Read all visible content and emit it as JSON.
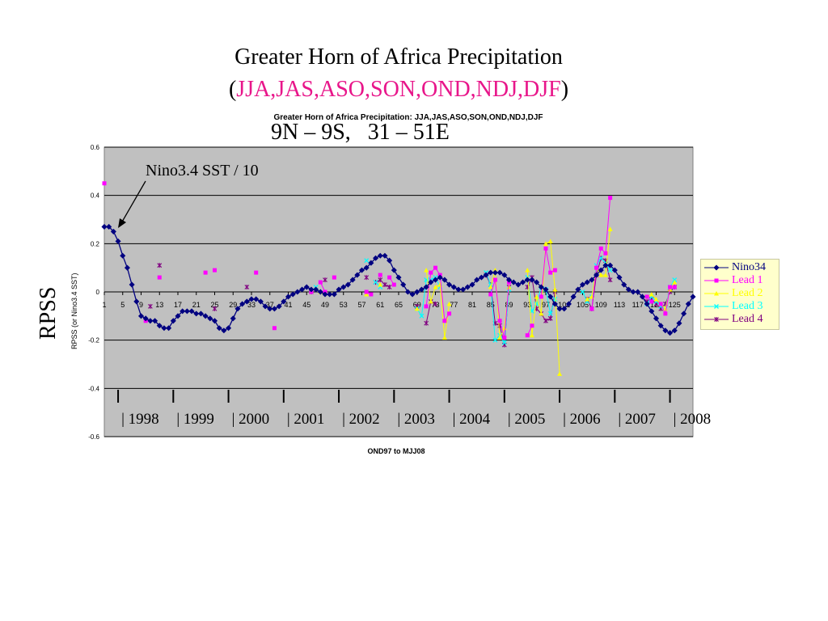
{
  "slide": {
    "title_line1": "Greater Horn of Africa Precipitation",
    "title_line2_open": "(",
    "title_line2_seasons": "JJA,JAS,ASO,SON,OND,NDJ,DJF",
    "title_line2_close": ")",
    "region": "9N – 9S,   31 – 51E",
    "rpss_label": "RPSS",
    "annotation": "Nino3.4 SST / 10"
  },
  "colors": {
    "plot_background": "#c0c0c0",
    "season_accent": "#e8168a",
    "Nino34": "#000080",
    "Lead 1": "#ff00ff",
    "Lead 2": "#ffff00",
    "Lead 3": "#00ffff",
    "Lead 4": "#800080",
    "legend_background": "#ffffcc"
  },
  "chart_data": {
    "type": "line",
    "title": "Greater Horn of Africa Precipitation: JJA,JAS,ASO,SON,OND,NDJ,DJF",
    "xlabel": "OND97 to MJJ08",
    "ylabel": "RPSS (or Nino3.4 SST)",
    "ylim": [
      -0.6,
      0.6
    ],
    "yticks": [
      "0.6",
      "0.4",
      "0.2",
      "0",
      "-0.2",
      "-0.4",
      "-0.6"
    ],
    "xticks": [
      "1",
      "5",
      "9",
      "13",
      "17",
      "21",
      "25",
      "29",
      "33",
      "37",
      "41",
      "45",
      "49",
      "53",
      "57",
      "61",
      "65",
      "69",
      "73",
      "77",
      "81",
      "85",
      "89",
      "93",
      "97",
      "101",
      "105",
      "109",
      "113",
      "117",
      "121",
      "125"
    ],
    "xlim": [
      1,
      129
    ],
    "year_labels": [
      "1998",
      "1999",
      "2000",
      "2001",
      "2002",
      "2003",
      "2004",
      "2005",
      "2006",
      "2007",
      "2008"
    ],
    "grid": true,
    "legend_position": "right",
    "series": [
      {
        "name": "Nino34",
        "x": [
          1,
          2,
          3,
          4,
          5,
          6,
          7,
          8,
          9,
          10,
          11,
          12,
          13,
          14,
          15,
          16,
          17,
          18,
          19,
          20,
          21,
          22,
          23,
          24,
          25,
          26,
          27,
          28,
          29,
          30,
          31,
          32,
          33,
          34,
          35,
          36,
          37,
          38,
          39,
          40,
          41,
          42,
          43,
          44,
          45,
          46,
          47,
          48,
          49,
          50,
          51,
          52,
          53,
          54,
          55,
          56,
          57,
          58,
          59,
          60,
          61,
          62,
          63,
          64,
          65,
          66,
          67,
          68,
          69,
          70,
          71,
          72,
          73,
          74,
          75,
          76,
          77,
          78,
          79,
          80,
          81,
          82,
          83,
          84,
          85,
          86,
          87,
          88,
          89,
          90,
          91,
          92,
          93,
          94,
          95,
          96,
          97,
          98,
          99,
          100,
          101,
          102,
          103,
          104,
          105,
          106,
          107,
          108,
          109,
          110,
          111,
          112,
          113,
          114,
          115,
          116,
          117,
          118,
          119,
          120,
          121,
          122,
          123,
          124,
          125,
          126,
          127,
          128,
          129
        ],
        "y": [
          0.27,
          0.27,
          0.25,
          0.21,
          0.15,
          0.1,
          0.03,
          -0.04,
          -0.1,
          -0.11,
          -0.12,
          -0.12,
          -0.14,
          -0.15,
          -0.15,
          -0.12,
          -0.1,
          -0.08,
          -0.08,
          -0.08,
          -0.09,
          -0.09,
          -0.1,
          -0.11,
          -0.12,
          -0.15,
          -0.16,
          -0.15,
          -0.11,
          -0.07,
          -0.05,
          -0.04,
          -0.03,
          -0.03,
          -0.04,
          -0.06,
          -0.07,
          -0.07,
          -0.06,
          -0.04,
          -0.02,
          -0.01,
          0.0,
          0.01,
          0.02,
          0.01,
          0.01,
          0.0,
          -0.01,
          -0.01,
          -0.01,
          0.01,
          0.02,
          0.03,
          0.05,
          0.07,
          0.09,
          0.1,
          0.12,
          0.14,
          0.15,
          0.15,
          0.13,
          0.09,
          0.06,
          0.03,
          0.0,
          -0.01,
          0.0,
          0.01,
          0.02,
          0.04,
          0.05,
          0.06,
          0.05,
          0.03,
          0.02,
          0.01,
          0.01,
          0.02,
          0.03,
          0.05,
          0.06,
          0.07,
          0.08,
          0.08,
          0.08,
          0.07,
          0.05,
          0.04,
          0.03,
          0.04,
          0.05,
          0.05,
          0.04,
          0.02,
          0.01,
          -0.02,
          -0.05,
          -0.07,
          -0.07,
          -0.05,
          -0.02,
          0.01,
          0.03,
          0.04,
          0.05,
          0.07,
          0.09,
          0.11,
          0.11,
          0.09,
          0.06,
          0.03,
          0.01,
          0.0,
          0.0,
          -0.02,
          -0.05,
          -0.08,
          -0.11,
          -0.14,
          -0.16,
          -0.17,
          -0.16,
          -0.13,
          -0.09,
          -0.05,
          -0.02
        ]
      },
      {
        "name": "Lead 1",
        "x": [
          1,
          10,
          13,
          23,
          25,
          34,
          38,
          46,
          48,
          49,
          51,
          58,
          59,
          61,
          63,
          64,
          71,
          72,
          73,
          74,
          75,
          76,
          85,
          86,
          87,
          88,
          89,
          93,
          94,
          96,
          97,
          98,
          99,
          107,
          108,
          109,
          110,
          111,
          119,
          120,
          122,
          123,
          124,
          125
        ],
        "y": [
          0.45,
          -0.12,
          0.06,
          0.08,
          0.09,
          0.08,
          -0.15,
          0.0,
          0.04,
          0.0,
          0.06,
          0.0,
          -0.01,
          0.07,
          0.06,
          0.03,
          -0.06,
          0.08,
          0.1,
          0.07,
          -0.12,
          -0.09,
          -0.01,
          0.05,
          -0.12,
          -0.19,
          0.04,
          -0.18,
          -0.14,
          -0.02,
          0.18,
          0.08,
          0.09,
          -0.07,
          0.1,
          0.18,
          0.16,
          0.39,
          -0.02,
          -0.04,
          -0.05,
          -0.09,
          0.02,
          0.02
        ]
      },
      {
        "name": "Lead 2",
        "x": [
          48,
          58,
          61,
          69,
          71,
          72,
          73,
          74,
          75,
          76,
          85,
          86,
          87,
          88,
          89,
          93,
          94,
          95,
          96,
          97,
          98,
          99,
          100,
          106,
          107,
          108,
          109,
          110,
          111,
          119,
          120,
          121,
          122,
          123,
          124,
          125
        ],
        "y": [
          0.0,
          -0.01,
          0.03,
          -0.07,
          0.09,
          -0.04,
          0.02,
          0.03,
          -0.19,
          -0.05,
          0.02,
          0.09,
          -0.19,
          -0.15,
          0.02,
          0.09,
          -0.18,
          -0.02,
          -0.09,
          0.2,
          0.21,
          0.01,
          -0.34,
          -0.03,
          -0.02,
          0.1,
          0.07,
          0.07,
          0.26,
          -0.02,
          -0.01,
          -0.03,
          -0.05,
          -0.07,
          0.01,
          0.04
        ]
      },
      {
        "name": "Lead 3",
        "x": [
          47,
          58,
          60,
          61,
          69,
          70,
          71,
          72,
          73,
          74,
          84,
          85,
          86,
          87,
          88,
          89,
          93,
          94,
          95,
          96,
          97,
          98,
          99,
          105,
          106,
          107,
          108,
          109,
          110,
          111,
          119,
          120,
          121,
          122,
          123,
          124,
          125
        ],
        "y": [
          0.02,
          0.13,
          0.04,
          0.02,
          -0.07,
          -0.1,
          0.05,
          0.05,
          0.06,
          0.02,
          0.08,
          0.03,
          -0.2,
          -0.18,
          -0.21,
          0.01,
          0.06,
          -0.08,
          -0.05,
          0.02,
          0.01,
          -0.09,
          -0.03,
          0.0,
          -0.04,
          -0.02,
          0.11,
          0.14,
          0.12,
          0.09,
          -0.05,
          -0.02,
          -0.04,
          -0.06,
          -0.07,
          0.02,
          0.05
        ]
      },
      {
        "name": "Lead 4",
        "x": [
          11,
          13,
          25,
          32,
          46,
          49,
          58,
          60,
          61,
          62,
          63,
          69,
          71,
          72,
          73,
          84,
          85,
          86,
          87,
          88,
          89,
          93,
          94,
          95,
          96,
          97,
          98,
          99,
          106,
          107,
          108,
          109,
          110,
          111,
          119,
          120,
          121,
          122,
          123,
          124,
          125
        ],
        "y": [
          -0.06,
          0.11,
          -0.07,
          0.02,
          0.0,
          0.05,
          0.06,
          0.04,
          0.05,
          0.03,
          0.02,
          -0.06,
          -0.13,
          -0.04,
          -0.05,
          0.07,
          0.03,
          -0.13,
          -0.14,
          -0.22,
          0.02,
          0.02,
          0.06,
          -0.07,
          -0.09,
          -0.12,
          -0.11,
          0.0,
          -0.03,
          -0.07,
          0.07,
          0.14,
          0.13,
          0.05,
          -0.04,
          -0.03,
          -0.05,
          -0.07,
          -0.05,
          0.0,
          0.02
        ]
      }
    ]
  }
}
